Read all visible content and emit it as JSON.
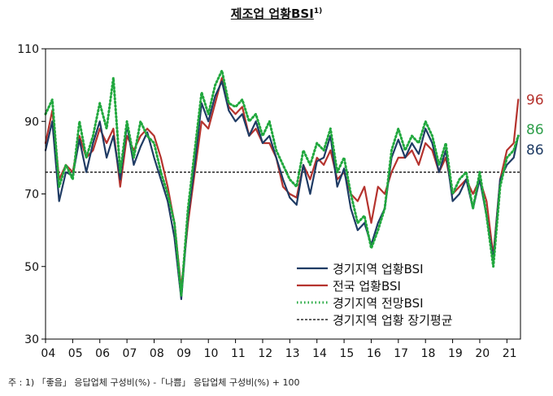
{
  "title": "제조업 업황BSI",
  "title_sup": "1)",
  "footnote": "주 : 1) 「좋음」 응답업체 구성비(%) -「나쁨」 응답업체 구성비(%) + 100",
  "chart_data": {
    "type": "line",
    "title": "제조업 업황BSI",
    "ylim": [
      30,
      110
    ],
    "yticks": [
      30,
      50,
      70,
      90,
      110
    ],
    "xlim": [
      2004,
      2021.5
    ],
    "xticks": [
      "04",
      "05",
      "06",
      "07",
      "08",
      "09",
      "10",
      "11",
      "12",
      "13",
      "14",
      "15",
      "16",
      "17",
      "18",
      "19",
      "20",
      "21"
    ],
    "grid": false,
    "legend_position": "bottom-right",
    "long_term_average": {
      "name": "경기지역 업황 장기평균",
      "value": 76,
      "color": "#000000"
    },
    "end_labels": [
      {
        "text": "96",
        "value": 96,
        "color": "#b5332e"
      },
      {
        "text": "86",
        "value": 86,
        "color": "#2e9e4a"
      },
      {
        "text": "86",
        "value": 86,
        "color": "#1f3b64"
      }
    ],
    "series": [
      {
        "name": "경기지역 업황BSI",
        "color": "#1f3b64",
        "style": "solid",
        "x": [
          2004.0,
          2004.25,
          2004.5,
          2004.75,
          2005.0,
          2005.25,
          2005.5,
          2005.75,
          2006.0,
          2006.25,
          2006.5,
          2006.75,
          2007.0,
          2007.25,
          2007.5,
          2007.75,
          2008.0,
          2008.25,
          2008.5,
          2008.75,
          2009.0,
          2009.25,
          2009.5,
          2009.75,
          2010.0,
          2010.25,
          2010.5,
          2010.75,
          2011.0,
          2011.25,
          2011.5,
          2011.75,
          2012.0,
          2012.25,
          2012.5,
          2012.75,
          2013.0,
          2013.25,
          2013.5,
          2013.75,
          2014.0,
          2014.25,
          2014.5,
          2014.75,
          2015.0,
          2015.25,
          2015.5,
          2015.75,
          2016.0,
          2016.25,
          2016.5,
          2016.75,
          2017.0,
          2017.25,
          2017.5,
          2017.75,
          2018.0,
          2018.25,
          2018.5,
          2018.75,
          2019.0,
          2019.25,
          2019.5,
          2019.75,
          2020.0,
          2020.25,
          2020.5,
          2020.75,
          2021.0,
          2021.25,
          2021.42
        ],
        "values": [
          82,
          90,
          68,
          76,
          75,
          85,
          76,
          84,
          90,
          80,
          86,
          74,
          89,
          78,
          83,
          87,
          80,
          74,
          68,
          58,
          41,
          64,
          78,
          95,
          90,
          97,
          101,
          93,
          90,
          92,
          86,
          90,
          84,
          86,
          80,
          74,
          69,
          67,
          78,
          70,
          79,
          80,
          86,
          72,
          77,
          66,
          60,
          62,
          56,
          62,
          66,
          80,
          85,
          80,
          84,
          81,
          88,
          84,
          76,
          82,
          68,
          70,
          74,
          66,
          74,
          64,
          52,
          74,
          78,
          80,
          86
        ]
      },
      {
        "name": "전국 업황BSI",
        "color": "#b5332e",
        "style": "solid",
        "x": [
          2004.0,
          2004.25,
          2004.5,
          2004.75,
          2005.0,
          2005.25,
          2005.5,
          2005.75,
          2006.0,
          2006.25,
          2006.5,
          2006.75,
          2007.0,
          2007.25,
          2007.5,
          2007.75,
          2008.0,
          2008.25,
          2008.5,
          2008.75,
          2009.0,
          2009.25,
          2009.5,
          2009.75,
          2010.0,
          2010.25,
          2010.5,
          2010.75,
          2011.0,
          2011.25,
          2011.5,
          2011.75,
          2012.0,
          2012.25,
          2012.5,
          2012.75,
          2013.0,
          2013.25,
          2013.5,
          2013.75,
          2014.0,
          2014.25,
          2014.5,
          2014.75,
          2015.0,
          2015.25,
          2015.5,
          2015.75,
          2016.0,
          2016.25,
          2016.5,
          2016.75,
          2017.0,
          2017.25,
          2017.5,
          2017.75,
          2018.0,
          2018.25,
          2018.5,
          2018.75,
          2019.0,
          2019.25,
          2019.5,
          2019.75,
          2020.0,
          2020.25,
          2020.5,
          2020.75,
          2021.0,
          2021.25,
          2021.42
        ],
        "values": [
          84,
          93,
          74,
          78,
          76,
          86,
          80,
          82,
          88,
          84,
          88,
          72,
          86,
          82,
          86,
          88,
          86,
          80,
          72,
          62,
          44,
          62,
          76,
          90,
          88,
          95,
          102,
          94,
          92,
          94,
          86,
          88,
          84,
          84,
          80,
          72,
          70,
          69,
          78,
          74,
          80,
          78,
          82,
          74,
          76,
          70,
          68,
          72,
          62,
          72,
          70,
          76,
          80,
          80,
          82,
          78,
          84,
          82,
          76,
          80,
          70,
          72,
          74,
          70,
          74,
          68,
          53,
          74,
          82,
          84,
          96
        ]
      },
      {
        "name": "경기지역 전망BSI",
        "color": "#21a83e",
        "style": "dotted",
        "x": [
          2004.0,
          2004.25,
          2004.5,
          2004.75,
          2005.0,
          2005.25,
          2005.5,
          2005.75,
          2006.0,
          2006.25,
          2006.5,
          2006.75,
          2007.0,
          2007.25,
          2007.5,
          2007.75,
          2008.0,
          2008.25,
          2008.5,
          2008.75,
          2009.0,
          2009.25,
          2009.5,
          2009.75,
          2010.0,
          2010.25,
          2010.5,
          2010.75,
          2011.0,
          2011.25,
          2011.5,
          2011.75,
          2012.0,
          2012.25,
          2012.5,
          2012.75,
          2013.0,
          2013.25,
          2013.5,
          2013.75,
          2014.0,
          2014.25,
          2014.5,
          2014.75,
          2015.0,
          2015.25,
          2015.5,
          2015.75,
          2016.0,
          2016.25,
          2016.5,
          2016.75,
          2017.0,
          2017.25,
          2017.5,
          2017.75,
          2018.0,
          2018.25,
          2018.5,
          2018.75,
          2019.0,
          2019.25,
          2019.5,
          2019.75,
          2020.0,
          2020.25,
          2020.5,
          2020.75,
          2021.0,
          2021.25,
          2021.42
        ],
        "values": [
          92,
          96,
          72,
          78,
          74,
          90,
          80,
          86,
          95,
          88,
          102,
          76,
          90,
          80,
          90,
          86,
          84,
          76,
          70,
          62,
          42,
          66,
          82,
          98,
          92,
          100,
          104,
          95,
          94,
          96,
          90,
          92,
          86,
          90,
          82,
          78,
          74,
          72,
          82,
          78,
          84,
          82,
          88,
          76,
          80,
          70,
          62,
          64,
          55,
          60,
          66,
          82,
          88,
          82,
          86,
          84,
          90,
          86,
          78,
          84,
          70,
          74,
          76,
          66,
          76,
          64,
          50,
          72,
          80,
          82,
          86
        ]
      }
    ]
  }
}
